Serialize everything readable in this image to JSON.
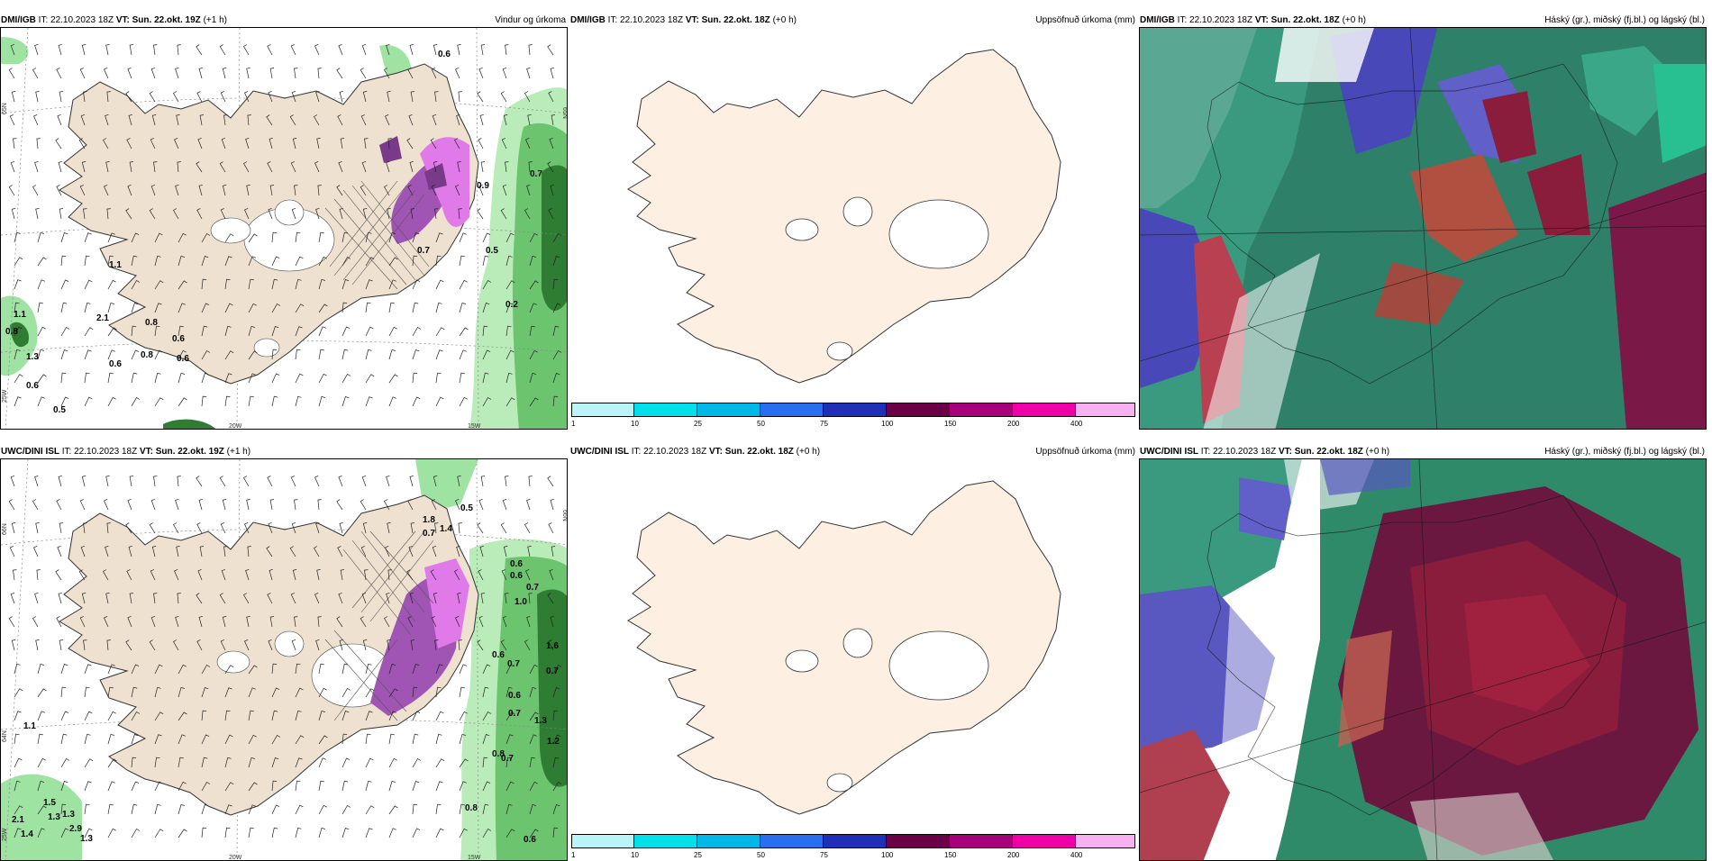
{
  "panels": [
    {
      "model": "DMI/IGB",
      "it": "IT: 22.10.2023 18Z",
      "vt": "VT: Sun. 22.okt. 19Z",
      "step": "(+1 h)",
      "field": "Vindur og úrkoma",
      "values": [
        "0.6",
        "0.7",
        "0.9",
        "0.5",
        "1.1",
        "2.1",
        "1.1",
        "0.8",
        "0.6",
        "0.8",
        "0.8",
        "0.6",
        "0.6",
        "1.3",
        "0.6",
        "0.5",
        "0.7",
        "0.2"
      ]
    },
    {
      "model": "DMI/IGB",
      "it": "IT: 22.10.2023 18Z",
      "vt": "VT: Sun. 22.okt. 18Z",
      "step": "(+0 h)",
      "field": "Uppsöfnuð úrkoma (mm)"
    },
    {
      "model": "DMI/IGB",
      "it": "IT: 22.10.2023 18Z",
      "vt": "VT: Sun. 22.okt. 18Z",
      "step": "(+0 h)",
      "field": "Háský (gr.), miðský (fj.bl.) og lágský (bl.)"
    },
    {
      "model": "UWC/DINI ISL",
      "it": "IT: 22.10.2023 18Z",
      "vt": "VT: Sun. 22.okt. 19Z",
      "step": "(+1 h)",
      "field": "",
      "values": [
        "0.5",
        "1.8",
        "0.7",
        "1.4",
        "0.6",
        "0.6",
        "0.7",
        "1.0",
        "0.6",
        "0.7",
        "1.6",
        "0.7",
        "0.6",
        "0.7",
        "1.3",
        "1.2",
        "0.8",
        "0.7",
        "0.8",
        "0.6",
        "1.1",
        "2.1",
        "1.5",
        "1.3",
        "1.3",
        "2.9",
        "1.3",
        "1.4"
      ]
    },
    {
      "model": "UWC/DINI ISL",
      "it": "IT: 22.10.2023 18Z",
      "vt": "VT: Sun. 22.okt. 18Z",
      "step": "(+0 h)",
      "field": "Uppsöfnuð úrkoma (mm)"
    },
    {
      "model": "UWC/DINI ISL",
      "it": "IT: 22.10.2023 18Z",
      "vt": "VT: Sun. 22.okt. 18Z",
      "step": "(+0 h)",
      "field": "Háský (gr.), miðský (fj.bl.) og lágský (bl.)"
    }
  ],
  "axis_labels": {
    "lon_20w": "20W",
    "lon_15w": "15W",
    "lon_25w": "25W",
    "lat_65n": "65N",
    "lat_64n": "64N",
    "lat_66n": "66N"
  },
  "colorbar": {
    "ticks": [
      "1",
      "10",
      "25",
      "50",
      "75",
      "100",
      "150",
      "200",
      "400"
    ],
    "colors": [
      "#b8f4f8",
      "#00e0ea",
      "#00b8e8",
      "#2a6ef0",
      "#1f2fb8",
      "#6b0046",
      "#a8007a",
      "#f000a8",
      "#f7b0f0"
    ]
  },
  "colors": {
    "land": "#efe1d0",
    "land_precip": "#fdf0e2",
    "precip_green": "#9fe3a3",
    "precip_dark": "#2e7d32",
    "snow_purple": "#7a3a8a",
    "high_cloud": "#2a8a6a",
    "mid_cloud": "#7a1848",
    "low_cloud": "#4848b8"
  }
}
